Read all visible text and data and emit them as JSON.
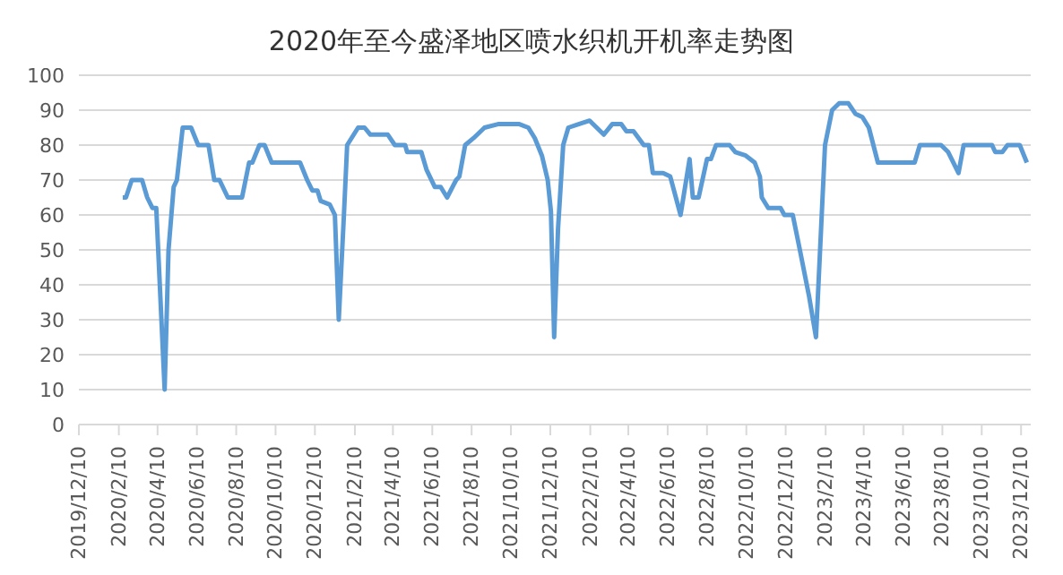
{
  "chart_data": {
    "type": "line",
    "title": "2020年至今盛泽地区喷水织机开机率走势图",
    "x": [
      "2020-02-16",
      "2020-02-21",
      "2020-03-01",
      "2020-03-17",
      "2020-03-25",
      "2020-04-02",
      "2020-04-08",
      "2020-04-21",
      "2020-04-27",
      "2020-05-05",
      "2020-05-10",
      "2020-05-19",
      "2020-06-01",
      "2020-06-12",
      "2020-06-28",
      "2020-07-07",
      "2020-07-15",
      "2020-07-28",
      "2020-08-19",
      "2020-08-30",
      "2020-09-04",
      "2020-09-15",
      "2020-09-23",
      "2020-10-04",
      "2020-11-17",
      "2020-11-28",
      "2020-12-06",
      "2020-12-14",
      "2020-12-19",
      "2021-01-02",
      "2021-01-10",
      "2021-01-16",
      "2021-01-24",
      "2021-01-29",
      "2021-02-15",
      "2021-02-25",
      "2021-03-06",
      "2021-04-02",
      "2021-04-13",
      "2021-04-29",
      "2021-05-02",
      "2021-05-24",
      "2021-06-01",
      "2021-06-14",
      "2021-06-23",
      "2021-07-03",
      "2021-07-17",
      "2021-07-22",
      "2021-07-31",
      "2021-08-13",
      "2021-08-30",
      "2021-09-20",
      "2021-10-23",
      "2021-11-06",
      "2021-11-16",
      "2021-11-27",
      "2021-12-06",
      "2021-12-11",
      "2021-12-16",
      "2021-12-22",
      "2021-12-30",
      "2022-01-07",
      "2022-01-23",
      "2022-02-09",
      "2022-02-20",
      "2022-03-03",
      "2022-03-16",
      "2022-03-30",
      "2022-04-07",
      "2022-04-18",
      "2022-05-04",
      "2022-05-12",
      "2022-05-18",
      "2022-06-03",
      "2022-06-14",
      "2022-06-30",
      "2022-07-14",
      "2022-07-19",
      "2022-07-28",
      "2022-08-10",
      "2022-08-16",
      "2022-08-24",
      "2022-09-14",
      "2022-09-23",
      "2022-10-09",
      "2022-10-23",
      "2022-10-31",
      "2022-11-03",
      "2022-11-13",
      "2022-12-02",
      "2022-12-08",
      "2022-12-21",
      "2023-01-01",
      "2023-01-15",
      "2023-01-26",
      "2023-02-09",
      "2023-02-20",
      "2023-03-03",
      "2023-03-17",
      "2023-03-28",
      "2023-04-08",
      "2023-04-18",
      "2023-05-02",
      "2023-06-28",
      "2023-07-06",
      "2023-08-08",
      "2023-08-19",
      "2023-09-04",
      "2023-09-12",
      "2023-10-26",
      "2023-10-31",
      "2023-11-11",
      "2023-11-19",
      "2023-12-08",
      "2023-12-19"
    ],
    "series": [
      {
        "color": "#5b9bd5",
        "values": [
          65,
          65,
          70,
          70,
          65,
          62,
          62,
          10,
          50,
          68,
          70,
          85,
          85,
          80,
          80,
          70,
          70,
          65,
          65,
          75,
          75,
          80,
          80,
          75,
          75,
          70,
          67,
          67,
          64,
          63,
          60,
          30,
          60,
          80,
          85,
          85,
          83,
          83,
          80,
          80,
          78,
          78,
          73,
          68,
          68,
          65,
          70,
          71,
          80,
          82,
          85,
          86,
          86,
          85,
          82,
          77,
          70,
          61,
          25,
          56,
          80,
          85,
          86,
          87,
          85,
          83,
          86,
          86,
          84,
          84,
          80,
          80,
          72,
          72,
          71,
          60,
          76,
          65,
          65,
          76,
          76,
          80,
          80,
          78,
          77,
          75,
          71,
          65,
          62,
          62,
          60,
          60,
          50,
          37,
          25,
          80,
          90,
          92,
          92,
          89,
          88,
          85,
          75,
          75,
          80,
          80,
          78,
          72,
          80,
          80,
          78,
          78,
          80,
          80,
          75
        ]
      }
    ],
    "xlim": [
      "2019-12-10",
      "2023-12-25"
    ],
    "xticks": [
      {
        "value": "2019-12-10",
        "label": "2019/12/10"
      },
      {
        "value": "2020-02-10",
        "label": "2020/2/10"
      },
      {
        "value": "2020-04-10",
        "label": "2020/4/10"
      },
      {
        "value": "2020-06-10",
        "label": "2020/6/10"
      },
      {
        "value": "2020-08-10",
        "label": "2020/8/10"
      },
      {
        "value": "2020-10-10",
        "label": "2020/10/10"
      },
      {
        "value": "2020-12-10",
        "label": "2020/12/10"
      },
      {
        "value": "2021-02-10",
        "label": "2021/2/10"
      },
      {
        "value": "2021-04-10",
        "label": "2021/4/10"
      },
      {
        "value": "2021-06-10",
        "label": "2021/6/10"
      },
      {
        "value": "2021-08-10",
        "label": "2021/8/10"
      },
      {
        "value": "2021-10-10",
        "label": "2021/10/10"
      },
      {
        "value": "2021-12-10",
        "label": "2021/12/10"
      },
      {
        "value": "2022-02-10",
        "label": "2022/2/10"
      },
      {
        "value": "2022-04-10",
        "label": "2022/4/10"
      },
      {
        "value": "2022-06-10",
        "label": "2022/6/10"
      },
      {
        "value": "2022-08-10",
        "label": "2022/8/10"
      },
      {
        "value": "2022-10-10",
        "label": "2022/10/10"
      },
      {
        "value": "2022-12-10",
        "label": "2022/12/10"
      },
      {
        "value": "2023-02-10",
        "label": "2023/2/10"
      },
      {
        "value": "2023-04-10",
        "label": "2023/4/10"
      },
      {
        "value": "2023-06-10",
        "label": "2023/6/10"
      },
      {
        "value": "2023-08-10",
        "label": "2023/8/10"
      },
      {
        "value": "2023-10-10",
        "label": "2023/10/10"
      },
      {
        "value": "2023-12-10",
        "label": "2023/12/10"
      }
    ],
    "ylim": [
      0,
      100
    ],
    "yticks": [
      0,
      10,
      20,
      30,
      40,
      50,
      60,
      70,
      80,
      90,
      100
    ],
    "grid": "y",
    "marker": "none",
    "line_style": "solid",
    "legend": false
  }
}
